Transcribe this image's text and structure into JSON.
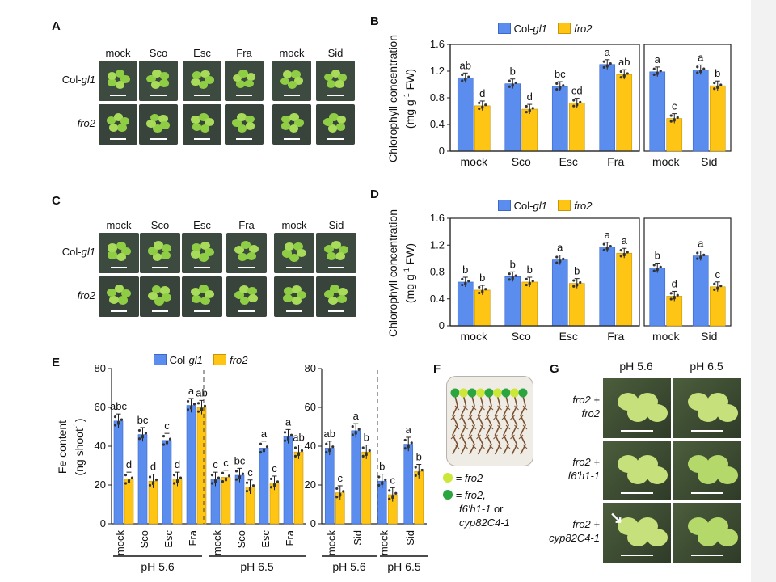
{
  "colors": {
    "col": "#5b8def",
    "fro2": "#fec515",
    "colEdge": "#3b68c9",
    "fro2Edge": "#c79606"
  },
  "panelA": {
    "letter": "A",
    "cols": [
      "mock",
      "Sco",
      "Esc",
      "Fra",
      "mock",
      "Sid"
    ],
    "rows": [
      {
        "a": "Col-",
        "b": "gl1"
      },
      {
        "a": "",
        "b": "fro2"
      }
    ]
  },
  "panelC": {
    "letter": "C",
    "cols": [
      "mock",
      "Sco",
      "Esc",
      "Fra",
      "mock",
      "Sid"
    ],
    "rows": [
      {
        "a": "Col-",
        "b": "gl1"
      },
      {
        "a": "",
        "b": "fro2"
      }
    ]
  },
  "legend": {
    "col_a": "Col-",
    "col_b": "gl1",
    "fro2": "fro2"
  },
  "ylabel_chl_a": "Chlorophyll concentration",
  "ylabel_chl_b": "(mg g",
  "ylabel_chl_c": "-1",
  "ylabel_chl_d": " FW)",
  "chart_data": [
    {
      "panel": "B",
      "type": "bar",
      "categories": [
        "mock",
        "Sco",
        "Esc",
        "Fra"
      ],
      "series": [
        {
          "name": "Col-gl1",
          "values": [
            1.1,
            1.01,
            0.97,
            1.3
          ],
          "letters": [
            "ab",
            "b",
            "bc",
            "a"
          ]
        },
        {
          "name": "fro2",
          "values": [
            0.68,
            0.63,
            0.72,
            1.15
          ],
          "letters": [
            "d",
            "d",
            "cd",
            "ab"
          ]
        }
      ],
      "ylim": [
        0,
        1.6
      ],
      "yticks": [
        "0",
        "0.4",
        "0.8",
        "1.2",
        "1.6"
      ],
      "ylabel": "Chlorophyll concentration (mg g-1 FW)"
    },
    {
      "panel": "B2",
      "type": "bar",
      "categories": [
        "mock",
        "Sid"
      ],
      "series": [
        {
          "name": "Col-gl1",
          "values": [
            1.19,
            1.22
          ],
          "letters": [
            "a",
            "a"
          ]
        },
        {
          "name": "fro2",
          "values": [
            0.49,
            0.98
          ],
          "letters": [
            "c",
            "b"
          ]
        }
      ],
      "ylim": [
        0,
        1.6
      ]
    },
    {
      "panel": "D",
      "type": "bar",
      "categories": [
        "mock",
        "Sco",
        "Esc",
        "Fra"
      ],
      "series": [
        {
          "name": "Col-gl1",
          "values": [
            0.65,
            0.73,
            0.98,
            1.17
          ],
          "letters": [
            "b",
            "b",
            "a",
            "a"
          ]
        },
        {
          "name": "fro2",
          "values": [
            0.53,
            0.65,
            0.63,
            1.08
          ],
          "letters": [
            "b",
            "b",
            "b",
            "a"
          ]
        }
      ],
      "ylim": [
        0,
        1.6
      ],
      "yticks": [
        "0",
        "0.4",
        "0.8",
        "1.2",
        "1.6"
      ],
      "ylabel": "Chlorophyll concentration (mg g-1 FW)"
    },
    {
      "panel": "D2",
      "type": "bar",
      "categories": [
        "mock",
        "Sid"
      ],
      "series": [
        {
          "name": "Col-gl1",
          "values": [
            0.86,
            1.04
          ],
          "letters": [
            "b",
            "a"
          ]
        },
        {
          "name": "fro2",
          "values": [
            0.44,
            0.58
          ],
          "letters": [
            "d",
            "c"
          ]
        }
      ],
      "ylim": [
        0,
        1.6
      ]
    },
    {
      "panel": "E",
      "type": "bar",
      "categories": [
        "mock",
        "Sco",
        "Esc",
        "Fra",
        "mock",
        "Sco",
        "Esc",
        "Fra"
      ],
      "groups": [
        "pH 5.6",
        "pH 6.5"
      ],
      "series": [
        {
          "name": "Col-gl1",
          "values": [
            53,
            46,
            43,
            61,
            23,
            25,
            39,
            45
          ],
          "letters": [
            "abc",
            "bc",
            "c",
            "a",
            "c",
            "bc",
            "a",
            "a"
          ]
        },
        {
          "name": "fro2",
          "values": [
            23,
            22,
            23,
            60,
            24,
            19,
            21,
            37
          ],
          "letters": [
            "d",
            "d",
            "d",
            "ab",
            "c",
            "c",
            "c",
            "ab"
          ]
        }
      ],
      "ylim": [
        0,
        80
      ],
      "yticks": [
        "0",
        "20",
        "40",
        "60",
        "80"
      ],
      "ylabel": "Fe content (ng shoot-1)"
    },
    {
      "panel": "E2",
      "type": "bar",
      "categories": [
        "mock",
        "Sid",
        "mock",
        "Sid"
      ],
      "groups": [
        "pH 5.6",
        "pH 6.5"
      ],
      "series": [
        {
          "name": "Col-gl1",
          "values": [
            39,
            48,
            22,
            41
          ],
          "letters": [
            "ab",
            "a",
            "b",
            "a"
          ]
        },
        {
          "name": "fro2",
          "values": [
            16,
            37,
            15,
            27
          ],
          "letters": [
            "c",
            "b",
            "c",
            "b"
          ]
        }
      ],
      "ylim": [
        0,
        80
      ],
      "yticks": [
        "0",
        "20",
        "40",
        "60",
        "80"
      ]
    }
  ],
  "ylabel_fe_a": "Fe content",
  "ylabel_fe_b": "(ng shoot",
  "ylabel_fe_c": "-1",
  "ylabel_fe_d": ")",
  "phE": [
    "pH 5.6",
    "pH 6.5",
    "pH 5.6",
    "pH 6.5"
  ],
  "panelF": {
    "letter": "F",
    "legend1": "= fro2",
    "legend2a": "= fro2,",
    "legend2b": "f6'h1-1",
    "legend2c": " or",
    "legend2d": "cyp82C4-1"
  },
  "panelG": {
    "letter": "G",
    "cols": [
      "pH 5.6",
      "pH 6.5"
    ],
    "rows": [
      {
        "a": "fro2 +",
        "b": "fro2"
      },
      {
        "a": "fro2 +",
        "b": "f6'h1-1"
      },
      {
        "a": "fro2 +",
        "b": "cyp82C4-1"
      }
    ]
  }
}
